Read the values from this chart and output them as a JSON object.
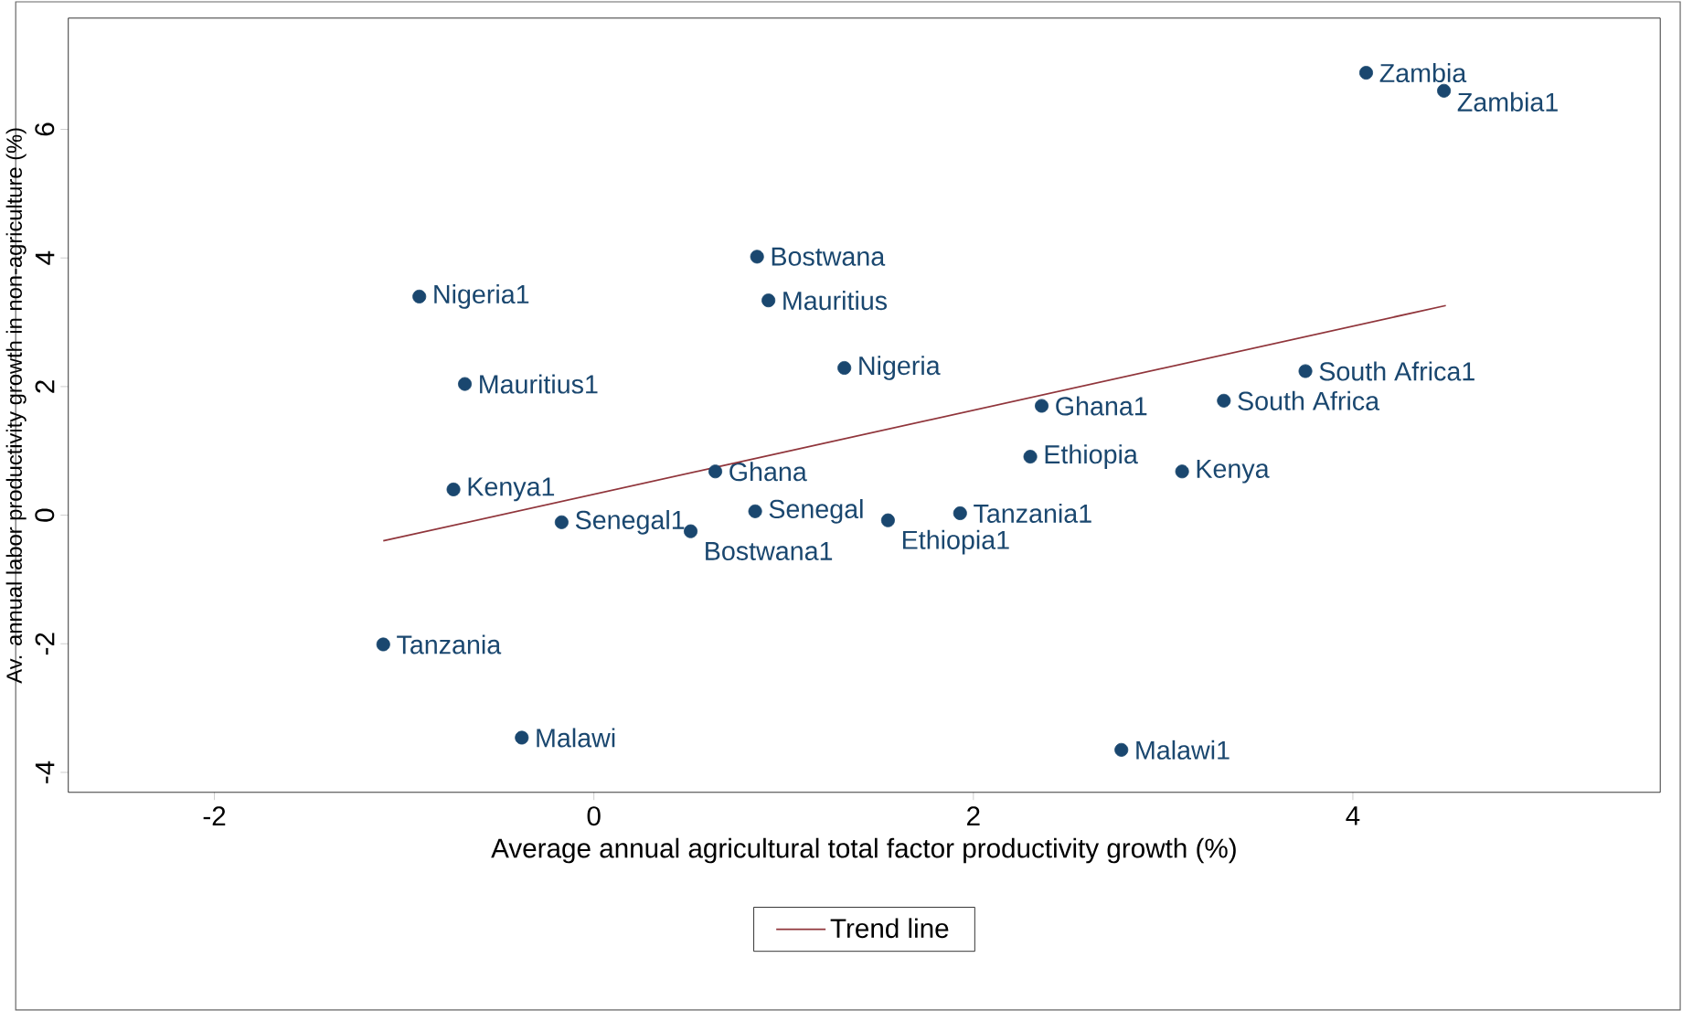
{
  "chart_data": {
    "type": "scatter",
    "xlabel": "Average annual agricultural total factor productivity growth (%)",
    "ylabel": "Av. annual labor productivity growth in non-agriculture (%)",
    "xlim": [
      -2.77,
      5.62
    ],
    "ylim": [
      -4.31,
      7.73
    ],
    "xticks": [
      -2,
      0,
      2,
      4
    ],
    "yticks": [
      -4,
      -2,
      0,
      2,
      4,
      6
    ],
    "grid": false,
    "legend": "bottom",
    "series": [
      {
        "color": "#1a476f",
        "marker": "circle",
        "x": [
          4.07,
          4.48,
          0.86,
          0.92,
          -0.92,
          1.32,
          -0.68,
          3.75,
          3.32,
          2.36,
          2.3,
          3.1,
          0.64,
          -0.74,
          0.85,
          1.93,
          1.55,
          -0.17,
          0.51,
          -1.11,
          -0.38,
          2.78
        ],
        "values": [
          6.88,
          6.6,
          4.02,
          3.34,
          3.4,
          2.29,
          2.04,
          2.24,
          1.78,
          1.7,
          0.91,
          0.68,
          0.68,
          0.4,
          0.06,
          0.03,
          -0.08,
          -0.11,
          -0.25,
          -2.01,
          -3.46,
          -3.65
        ],
        "value_labels": [
          "Zambia",
          "Zambia1",
          "Bostwana",
          "Mauritius",
          "Nigeria1",
          "Nigeria",
          "Mauritius1",
          "South Africa1",
          "South Africa",
          "Ghana1",
          "Ethiopia",
          "Kenya",
          "Ghana",
          "Kenya1",
          "Senegal",
          "Tanzania1",
          "Ethiopia1",
          "Senegal1",
          "Bostwana1",
          "Tanzania",
          "Malawi",
          "Malawi1"
        ]
      },
      {
        "type": "line",
        "name": "Trend line",
        "marker": "none",
        "color": "#90353b",
        "x": [
          -1.11,
          4.49
        ],
        "values": [
          -0.4,
          3.26
        ]
      }
    ]
  }
}
